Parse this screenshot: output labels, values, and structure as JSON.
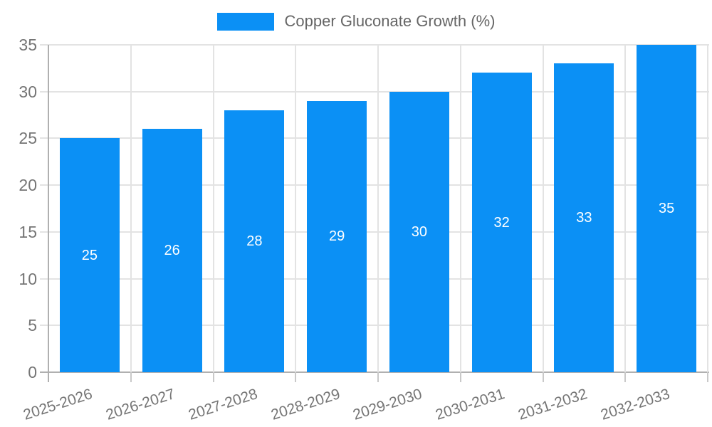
{
  "chart_data": {
    "type": "bar",
    "title": "Copper Gluconate Growth (%)",
    "legend": {
      "position": "top",
      "label": "Copper Gluconate Growth (%)"
    },
    "categories": [
      "2025-2026",
      "2026-2027",
      "2027-2028",
      "2028-2029",
      "2029-2030",
      "2030-2031",
      "2031-2032",
      "2032-2033"
    ],
    "values": [
      25,
      26,
      28,
      29,
      30,
      32,
      33,
      35
    ],
    "xlabel": "",
    "ylabel": "",
    "ylim": [
      0,
      35
    ],
    "yticks": [
      0,
      5,
      10,
      15,
      20,
      25,
      30,
      35
    ],
    "grid": true,
    "bar_labels_shown": true,
    "colors": {
      "bar": "#0b90f5",
      "bar_label": "#ffffff",
      "axis_text": "#757575",
      "legend_text": "#666666",
      "grid_line": "#e3e3e3",
      "axis_line": "#b0b0b0",
      "tick": "#c9c9c9",
      "background": "#ffffff"
    }
  }
}
